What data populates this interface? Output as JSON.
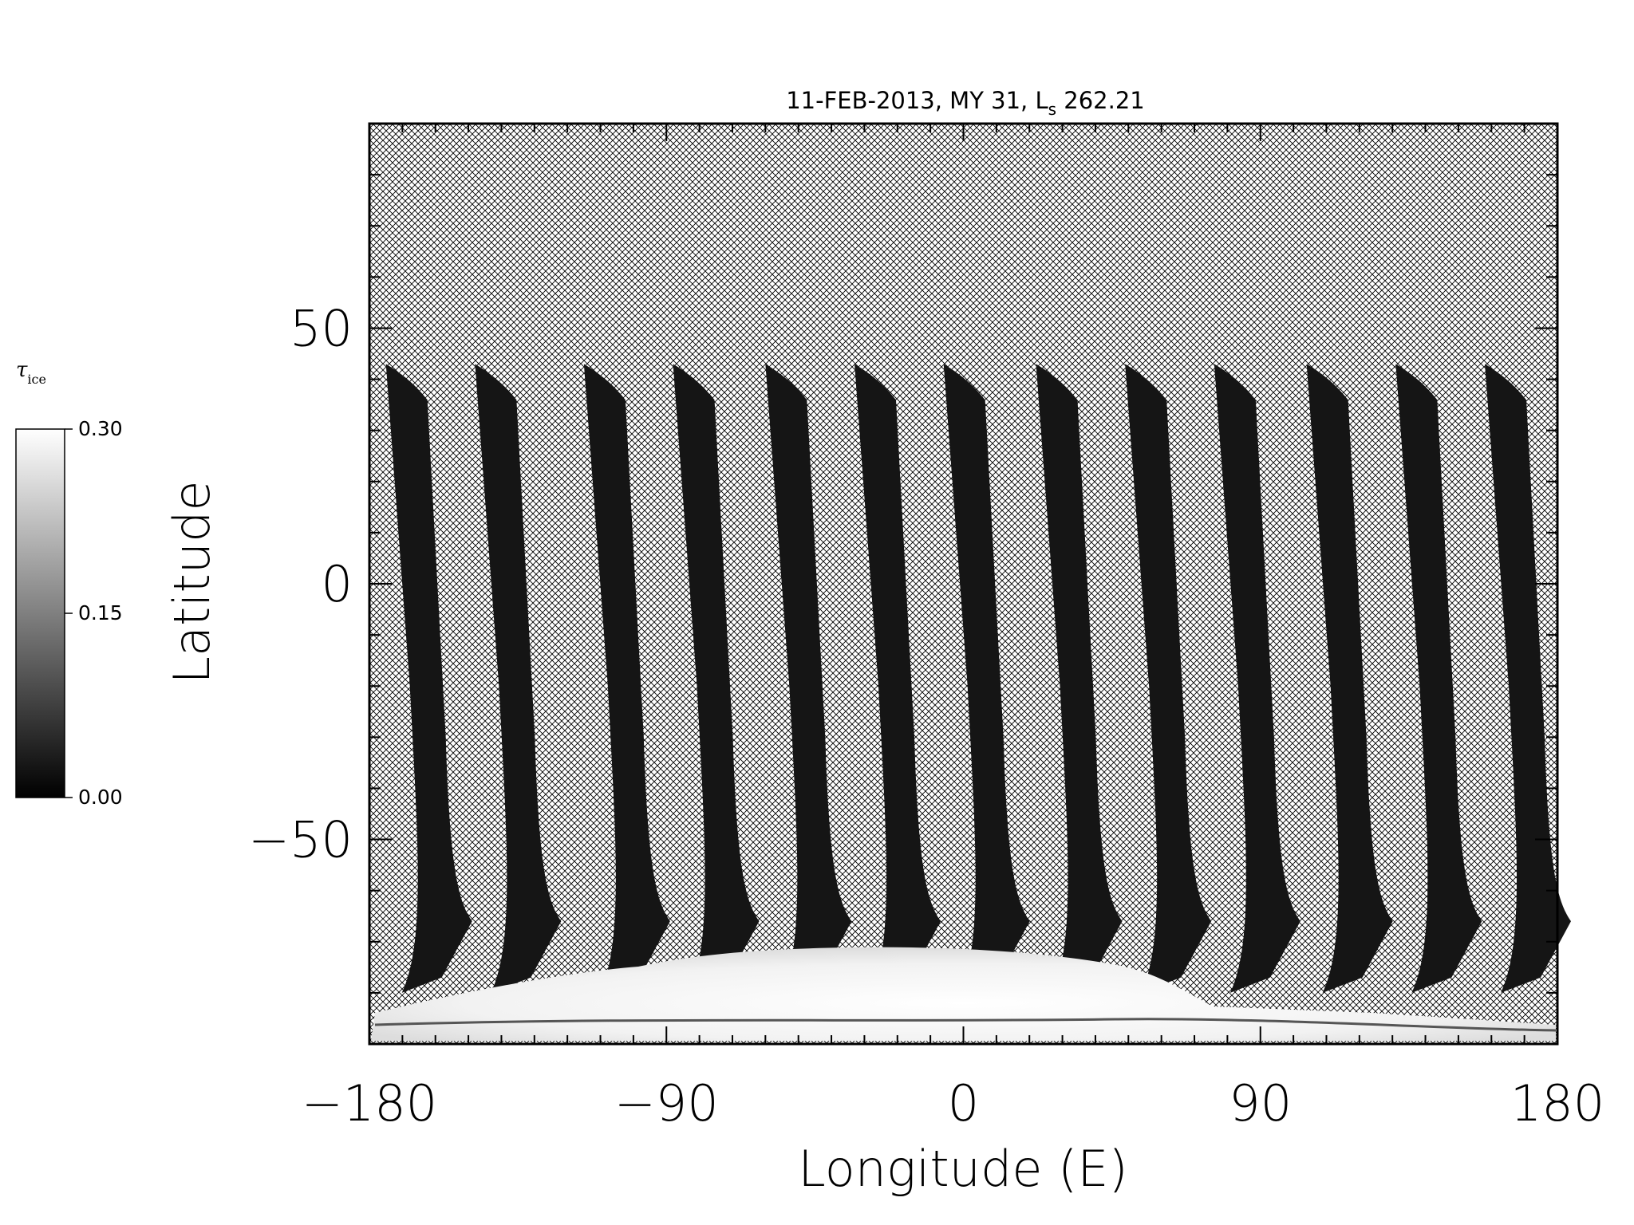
{
  "chart_data": {
    "type": "heatmap",
    "title_main": "11-FEB-2013, MY 31,  L",
    "title_sub": "s",
    "title_value": " 262.21",
    "xlabel": "Longitude (E)",
    "ylabel": "Latitude",
    "xlim": [
      -180,
      180
    ],
    "ylim": [
      -90,
      90
    ],
    "x_ticks": [
      -180,
      -90,
      0,
      90,
      180
    ],
    "x_tick_labels": [
      "−180",
      "−90",
      "0",
      "90",
      "180"
    ],
    "y_ticks": [
      -50,
      0,
      50
    ],
    "y_tick_labels": [
      "−50",
      "0",
      "50"
    ],
    "colorbar": {
      "title": "τ",
      "title_sub": "ice",
      "min": 0.0,
      "max": 0.3,
      "ticks": [
        0.0,
        0.15,
        0.3
      ],
      "tick_labels": [
        "0.00",
        "0.15",
        "0.30"
      ],
      "colors": [
        "#000000",
        "#ffffff"
      ]
    },
    "missing_data": "cross-hatched",
    "swaths_top_latitude": 43,
    "swaths_top_longitude": [
      -175,
      -148,
      -115,
      -88,
      -60,
      -33,
      -6,
      22,
      49,
      76,
      104,
      131,
      158
    ],
    "polar_ice_region": {
      "latitude_max": -70,
      "longitude_range": [
        -130,
        60
      ],
      "value": 0.3
    }
  }
}
